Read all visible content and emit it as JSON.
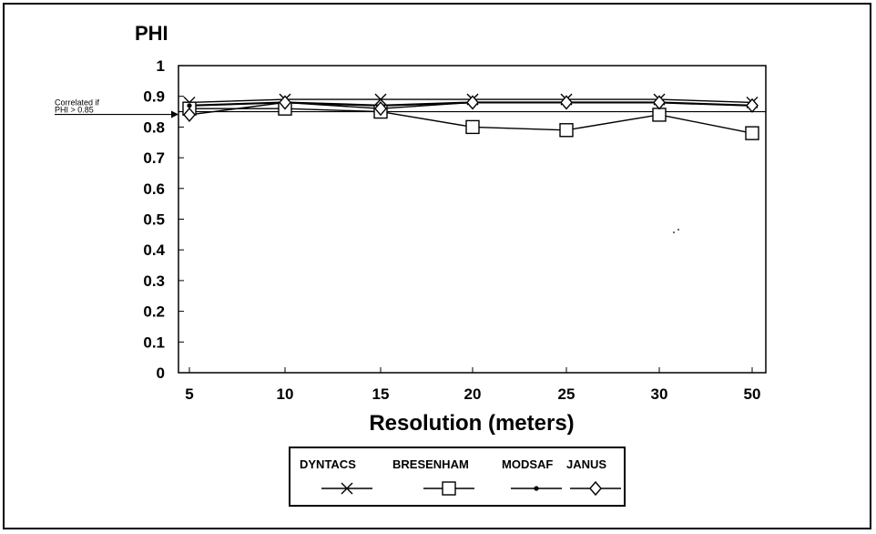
{
  "chart_data": {
    "type": "line",
    "title": "PHI",
    "xlabel": "Resolution (meters)",
    "ylabel": "",
    "categories": [
      "5",
      "10",
      "15",
      "20",
      "25",
      "30",
      "50"
    ],
    "ylim": [
      0,
      1
    ],
    "yticks": [
      "0",
      "0.1",
      "0.2",
      "0.3",
      "0.4",
      "0.5",
      "0.6",
      "0.7",
      "0.8",
      "0.9",
      "1"
    ],
    "threshold": {
      "value": 0.85,
      "label_line1": "Correlated if",
      "label_line2": "PHI > 0.85"
    },
    "series": [
      {
        "name": "DYNTACS",
        "marker": "x",
        "values": [
          0.88,
          0.89,
          0.89,
          0.89,
          0.89,
          0.89,
          0.88
        ]
      },
      {
        "name": "BRESENHAM",
        "marker": "square",
        "values": [
          0.86,
          0.86,
          0.85,
          0.8,
          0.79,
          0.84,
          0.78
        ]
      },
      {
        "name": "MODSAF",
        "marker": "dot",
        "values": [
          0.87,
          0.88,
          0.87,
          0.88,
          0.88,
          0.88,
          0.87
        ]
      },
      {
        "name": "JANUS",
        "marker": "diamond",
        "values": [
          0.84,
          0.88,
          0.86,
          0.88,
          0.88,
          0.88,
          0.87
        ]
      }
    ],
    "grid": false,
    "legend_position": "bottom-center"
  },
  "colors": {
    "ink": "#000000",
    "background": "#ffffff"
  }
}
